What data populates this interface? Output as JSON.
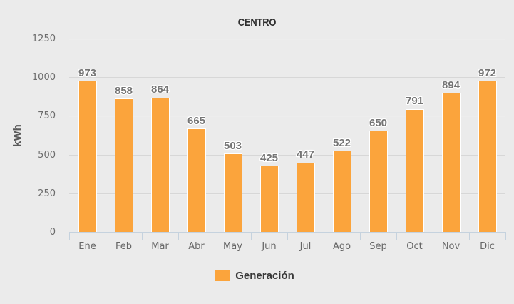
{
  "chart_data": {
    "type": "bar",
    "title": "CENTRO",
    "categories": [
      "Ene",
      "Feb",
      "Mar",
      "Abr",
      "May",
      "Jun",
      "Jul",
      "Ago",
      "Sep",
      "Oct",
      "Nov",
      "Dic"
    ],
    "series": [
      {
        "name": "Generación",
        "values": [
          973,
          858,
          864,
          665,
          503,
          425,
          447,
          522,
          650,
          791,
          894,
          972
        ]
      }
    ],
    "xlabel": "",
    "ylabel": "kWh",
    "ylim": [
      0,
      1250
    ],
    "yticks": [
      0,
      250,
      500,
      750,
      1000,
      1250
    ],
    "grid": true,
    "legend_position": "bottom",
    "data_labels": true,
    "colors": {
      "bar": "#FBA43C",
      "bar_border": "#FFFFFF",
      "background": "#EBEBEB",
      "gridline": "#D7D7D7",
      "axis_line": "#C5D2DE",
      "title_text": "#2E2E2E",
      "axis_label_text": "#666666",
      "data_label_text": "#757575",
      "legend_text": "#383838"
    }
  }
}
